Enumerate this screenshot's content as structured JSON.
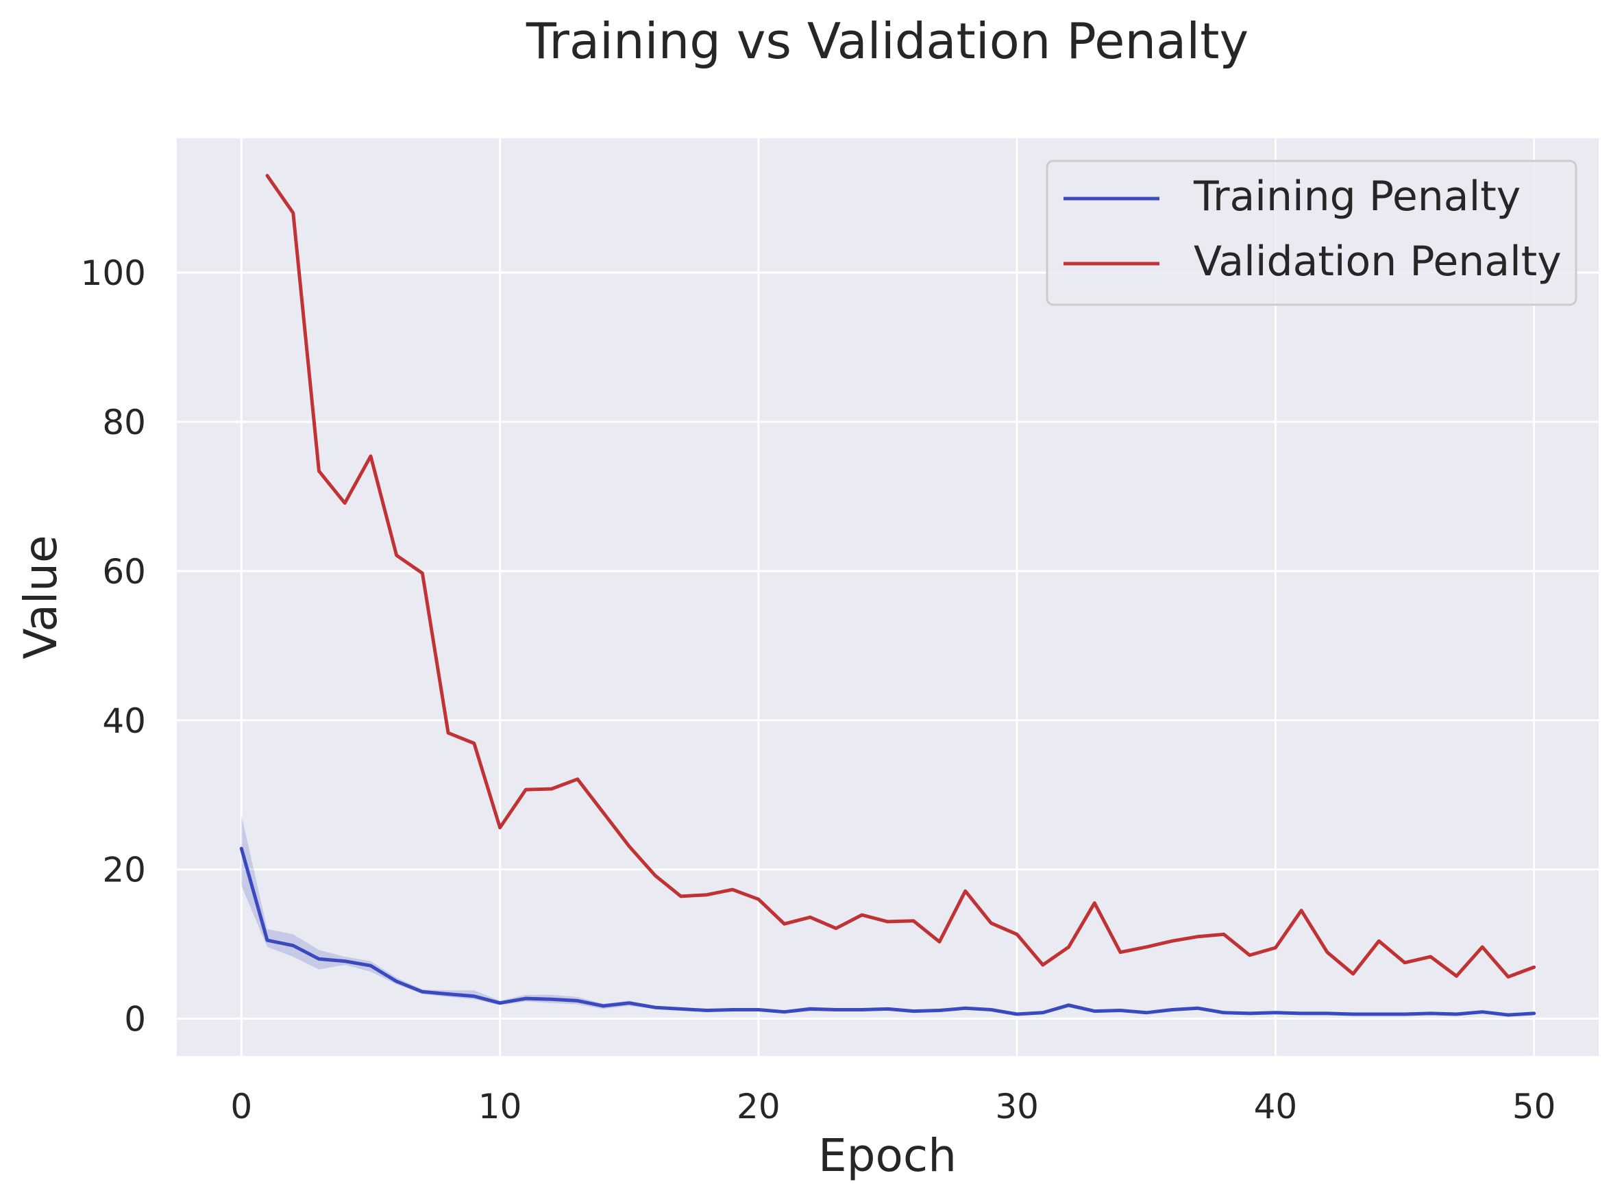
{
  "chart_data": {
    "type": "line",
    "title": "Training vs Validation Penalty",
    "xlabel": "Epoch",
    "ylabel": "Value",
    "xlim": [
      -2.5,
      52.5
    ],
    "ylim": [
      -5,
      118
    ],
    "xticks": [
      0,
      10,
      20,
      30,
      40,
      50
    ],
    "yticks": [
      0,
      20,
      40,
      60,
      80,
      100
    ],
    "grid": true,
    "legend_position": "top-right",
    "series": [
      {
        "name": "Training Penalty",
        "color": "#3b49bf",
        "x": [
          0,
          1,
          2,
          3,
          4,
          5,
          6,
          7,
          8,
          9,
          10,
          11,
          12,
          13,
          14,
          15,
          16,
          17,
          18,
          19,
          20,
          21,
          22,
          23,
          24,
          25,
          26,
          27,
          28,
          29,
          30,
          31,
          32,
          33,
          34,
          35,
          36,
          37,
          38,
          39,
          40,
          41,
          42,
          43,
          44,
          45,
          46,
          47,
          48,
          49,
          50
        ],
        "values": [
          22.8,
          10.5,
          9.8,
          8.0,
          7.7,
          7.1,
          5.0,
          3.6,
          3.3,
          3.0,
          2.1,
          2.7,
          2.6,
          2.4,
          1.7,
          2.1,
          1.5,
          1.3,
          1.1,
          1.2,
          1.2,
          0.9,
          1.3,
          1.2,
          1.2,
          1.3,
          1.0,
          1.1,
          1.4,
          1.2,
          0.6,
          0.8,
          1.8,
          1.0,
          1.1,
          0.8,
          1.2,
          1.4,
          0.8,
          0.7,
          0.8,
          0.7,
          0.7,
          0.6,
          0.6,
          0.6,
          0.7,
          0.6,
          0.9,
          0.5,
          0.7
        ],
        "band_upper": [
          27.3,
          12.0,
          11.3,
          9.2,
          8.3,
          7.7,
          5.5,
          3.9,
          3.8,
          3.8,
          2.4,
          3.2,
          3.2,
          2.9,
          2.0,
          2.4,
          1.7,
          1.5,
          1.3,
          1.4,
          1.4,
          1.1,
          1.6,
          1.4,
          1.4,
          1.5,
          1.2,
          1.3,
          1.6,
          1.4,
          0.8,
          1.0,
          2.1,
          1.2,
          1.3,
          1.0,
          1.4,
          1.6,
          1.0,
          0.9,
          1.0,
          0.9,
          0.9,
          0.8,
          0.8,
          0.8,
          0.9,
          0.8,
          1.1,
          0.7,
          0.9
        ],
        "band_lower": [
          17.8,
          9.6,
          8.3,
          6.6,
          7.2,
          6.3,
          4.6,
          3.3,
          2.9,
          2.6,
          1.8,
          2.3,
          2.1,
          1.9,
          1.3,
          1.7,
          1.3,
          1.1,
          0.9,
          1.0,
          1.0,
          0.7,
          1.0,
          1.0,
          1.0,
          1.1,
          0.8,
          0.9,
          1.2,
          1.0,
          0.4,
          0.6,
          1.5,
          0.8,
          0.9,
          0.6,
          1.0,
          1.2,
          0.6,
          0.5,
          0.6,
          0.5,
          0.5,
          0.4,
          0.4,
          0.4,
          0.5,
          0.4,
          0.7,
          0.3,
          0.5
        ]
      },
      {
        "name": "Validation Penalty",
        "color": "#c03234",
        "x": [
          1,
          2,
          3,
          4,
          5,
          6,
          7,
          8,
          9,
          10,
          11,
          12,
          13,
          14,
          15,
          16,
          17,
          18,
          19,
          20,
          21,
          22,
          23,
          24,
          25,
          26,
          27,
          28,
          29,
          30,
          31,
          32,
          33,
          34,
          35,
          36,
          37,
          38,
          39,
          40,
          41,
          42,
          43,
          44,
          45,
          46,
          47,
          48,
          49,
          50
        ],
        "values": [
          113.0,
          108.0,
          73.4,
          69.1,
          75.4,
          62.1,
          59.7,
          38.3,
          36.9,
          25.6,
          30.7,
          30.8,
          32.1,
          27.6,
          23.1,
          19.2,
          16.4,
          16.6,
          17.3,
          16.0,
          12.7,
          13.6,
          12.1,
          13.9,
          13.0,
          13.1,
          10.3,
          17.1,
          12.8,
          11.3,
          7.2,
          9.6,
          15.5,
          8.9,
          9.6,
          10.4,
          11.0,
          11.3,
          8.5,
          9.5,
          14.5,
          8.9,
          6.0,
          10.4,
          7.5,
          8.3,
          5.7,
          9.6,
          5.6,
          6.9
        ]
      }
    ]
  }
}
